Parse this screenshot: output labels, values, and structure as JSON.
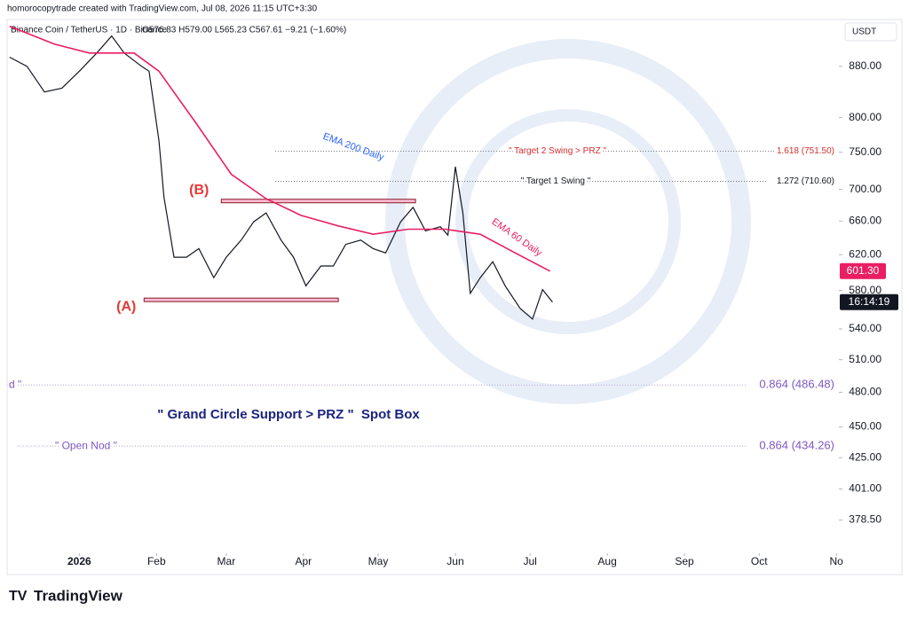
{
  "header": {
    "credit": "homorocopytrade created with TradingView.com, Jul 08, 2026 11:15 UTC+3:30",
    "symbol": "Binance Coin / TetherUS · 1D · Binance",
    "ohlc": "O576.83 H579.00 L565.23 C567.61 −9.21 (−1.60%)",
    "currency": "USDT",
    "countdown": "16:14:19"
  },
  "chart_data": {
    "type": "line",
    "log_scale": true,
    "xlim": [
      -29,
      305
    ],
    "ylim": [
      357,
      960
    ],
    "xticks": [
      {
        "value": 0,
        "label": "2026"
      },
      {
        "value": 31,
        "label": "Feb"
      },
      {
        "value": 59,
        "label": "Mar"
      },
      {
        "value": 90,
        "label": "Apr"
      },
      {
        "value": 120,
        "label": "May"
      },
      {
        "value": 151,
        "label": "Jun"
      },
      {
        "value": 181,
        "label": "Jul"
      },
      {
        "value": 212,
        "label": "Aug"
      },
      {
        "value": 243,
        "label": "Sep"
      },
      {
        "value": 273,
        "label": "Oct"
      },
      {
        "value": 304,
        "label": "No"
      }
    ],
    "yticks": [
      {
        "value": 378.5,
        "label": "378.50"
      },
      {
        "value": 401,
        "label": "401.00"
      },
      {
        "value": 425,
        "label": "425.00"
      },
      {
        "value": 450,
        "label": "450.00"
      },
      {
        "value": 480,
        "label": "480.00"
      },
      {
        "value": 510,
        "label": "510.00"
      },
      {
        "value": 540,
        "label": "540.00"
      },
      {
        "value": 580,
        "label": "580.00"
      },
      {
        "value": 620,
        "label": "620.00"
      },
      {
        "value": 660,
        "label": "660.00"
      },
      {
        "value": 700,
        "label": "700.00"
      },
      {
        "value": 750,
        "label": "750.00"
      },
      {
        "value": 800,
        "label": "800.00"
      },
      {
        "value": 880,
        "label": "880.00"
      }
    ],
    "series": [
      {
        "name": "Binance Coin / TetherUS",
        "color": "#131722",
        "x": [
          -28,
          -21,
          -14,
          -7,
          0,
          7,
          13,
          18,
          25,
          28,
          32,
          34,
          38,
          43,
          48,
          54,
          59,
          65,
          70,
          75,
          81,
          86,
          91,
          97,
          102,
          107,
          113,
          118,
          123,
          129,
          134,
          139,
          145,
          148,
          151,
          154,
          157,
          161,
          166,
          171,
          177,
          182,
          186,
          190
        ],
        "values": [
          895,
          880,
          839,
          845,
          872,
          902,
          931,
          902,
          880,
          872,
          766,
          690,
          617,
          617,
          627,
          594,
          617,
          637,
          659,
          670,
          637,
          617,
          585,
          607,
          607,
          632,
          637,
          627,
          622,
          659,
          677,
          648,
          653,
          643,
          730,
          670,
          577,
          594,
          612,
          585,
          561,
          550,
          581,
          567.61
        ]
      },
      {
        "name": "EMA 60 Daily",
        "color": "#e91e63",
        "x": [
          -28,
          -10,
          4,
          22,
          32,
          47,
          61,
          75,
          89,
          104,
          118,
          132,
          147,
          161,
          175,
          189
        ],
        "values": [
          948,
          917,
          902,
          902,
          872,
          791,
          720,
          688,
          667,
          654,
          644,
          650,
          650,
          644,
          622,
          601.3
        ],
        "last_label": "601.30"
      }
    ],
    "levels": [
      {
        "label": "\" Target 2 Swing > PRZ \"",
        "value": 751.5,
        "value_label": "1.618 (751.50)",
        "color": "#d32f2f"
      },
      {
        "label": "\" Target 1 Swing \"",
        "value": 710.6,
        "value_label": "1.272 (710.60)",
        "color": "#131722"
      },
      {
        "label": "d \"",
        "value": 486.48,
        "value_label": "0.864 (486.48)",
        "color": "#7e57c2"
      },
      {
        "label": "\" Open Nod \"",
        "value": 434.26,
        "value_label": "0.864 (434.26)",
        "color": "#7e57c2"
      }
    ],
    "zones": [
      {
        "label": "(A)",
        "value": 570,
        "x": [
          26,
          104
        ]
      },
      {
        "label": "(B)",
        "value": 685,
        "x": [
          57,
          135
        ]
      }
    ],
    "annotations": [
      "EMA 200 Daily",
      "\" Grand Circle Support > PRZ \"  Spot Box"
    ]
  },
  "footer": {
    "brand": "TradingView"
  }
}
